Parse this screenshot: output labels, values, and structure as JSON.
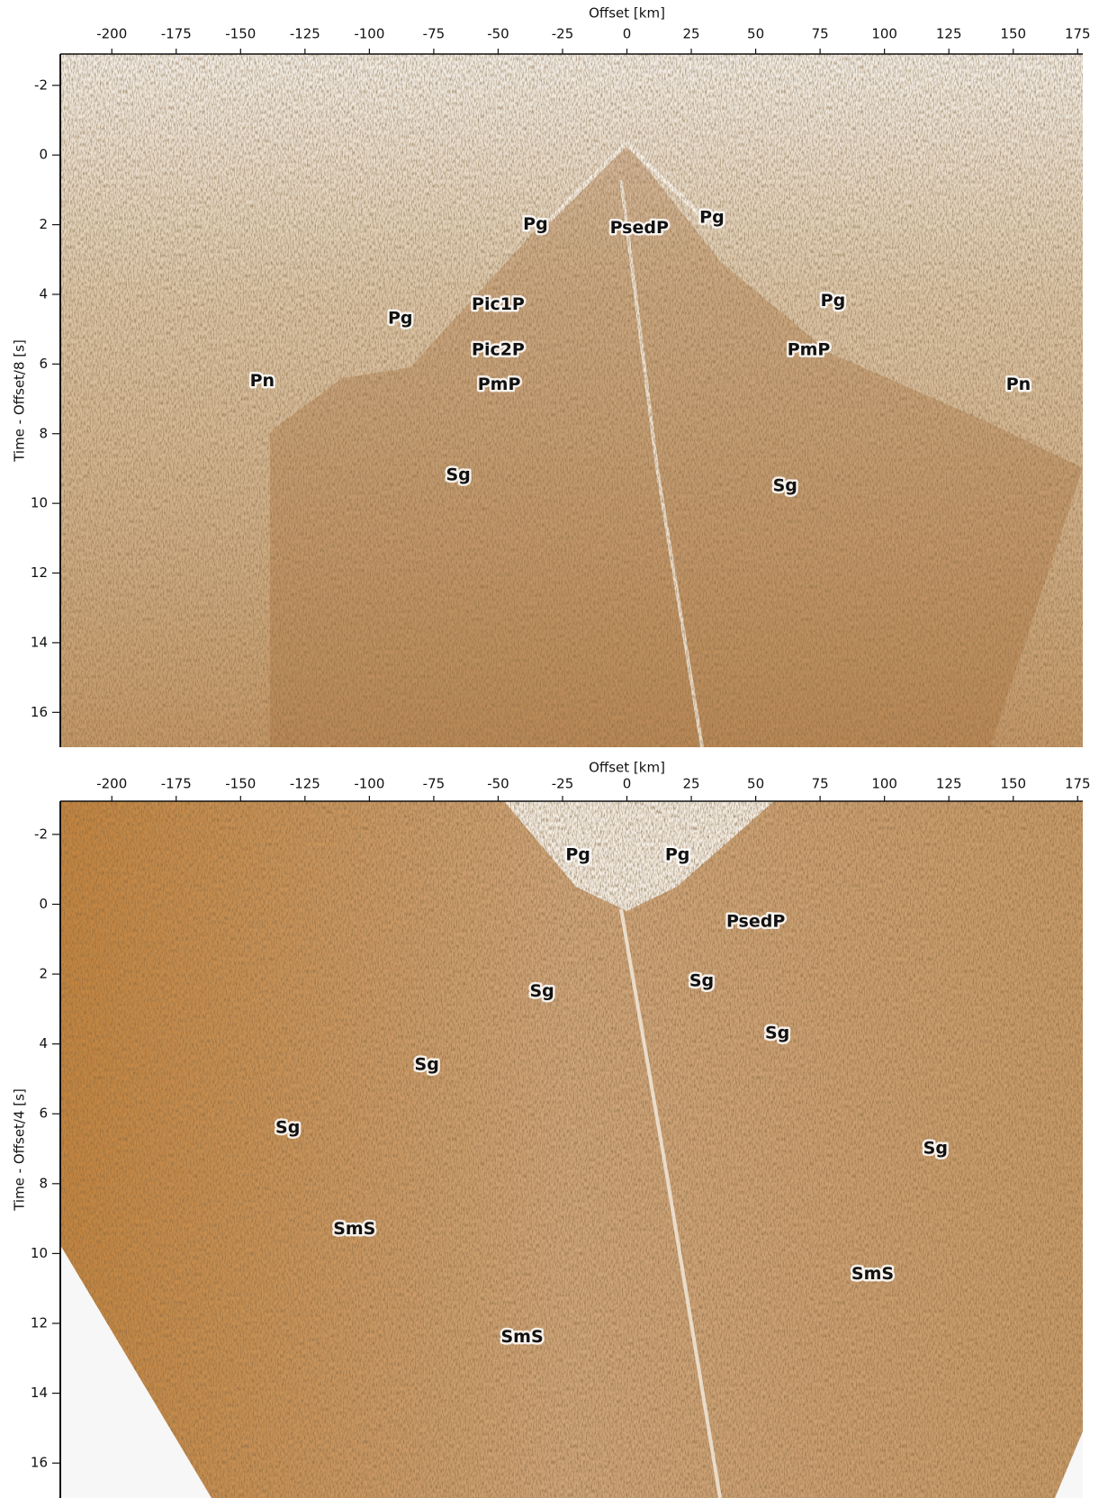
{
  "chart_data": [
    {
      "type": "section",
      "xlabel": "Offset [km]",
      "ylabel": "Time - Offset/8 [s]",
      "xlim": [
        -220,
        177
      ],
      "ylim": [
        -2.9,
        17
      ],
      "y_inverted": true,
      "xticks": [
        -200,
        -175,
        -150,
        -125,
        -100,
        -75,
        -50,
        -25,
        0,
        25,
        50,
        75,
        100,
        125,
        150,
        175
      ],
      "yticks": [
        -2,
        0,
        2,
        4,
        6,
        8,
        10,
        12,
        14,
        16
      ],
      "label_color": "#2f6fe4",
      "annotations": [
        {
          "text": "Pg",
          "x": -35.5,
          "y": 2.0
        },
        {
          "text": "PsedP",
          "x": 4.8,
          "y": 2.1
        },
        {
          "text": "Pg",
          "x": 33,
          "y": 1.8
        },
        {
          "text": "Pg",
          "x": -88,
          "y": 4.7
        },
        {
          "text": "Pic1P",
          "x": -50,
          "y": 4.3
        },
        {
          "text": "Pg",
          "x": 80,
          "y": 4.2
        },
        {
          "text": "Pic2P",
          "x": -50,
          "y": 5.6
        },
        {
          "text": "PmP",
          "x": 70.6,
          "y": 5.6
        },
        {
          "text": "Pn",
          "x": -141.6,
          "y": 6.5
        },
        {
          "text": "PmP",
          "x": -49.6,
          "y": 6.6
        },
        {
          "text": "Pn",
          "x": 152,
          "y": 6.6
        },
        {
          "text": "Sg",
          "x": -65.5,
          "y": 9.2
        },
        {
          "text": "Sg",
          "x": 61.4,
          "y": 9.5
        }
      ]
    },
    {
      "type": "section",
      "xlabel": "Offset [km]",
      "ylabel": "Time - Offset/4 [s]",
      "xlim": [
        -220,
        177
      ],
      "ylim": [
        -2.95,
        17
      ],
      "y_inverted": true,
      "xticks": [
        -200,
        -175,
        -150,
        -125,
        -100,
        -75,
        -50,
        -25,
        0,
        25,
        50,
        75,
        100,
        125,
        150,
        175
      ],
      "yticks": [
        -2,
        0,
        2,
        4,
        6,
        8,
        10,
        12,
        14,
        16
      ],
      "label_color": "#2f6fe4",
      "annotations": [
        {
          "text": "Pg",
          "x": -19,
          "y": -1.4
        },
        {
          "text": "Pg",
          "x": 19.6,
          "y": -1.4
        },
        {
          "text": "PsedP",
          "x": 50,
          "y": 0.5
        },
        {
          "text": "Sg",
          "x": 29,
          "y": 2.2
        },
        {
          "text": "Sg",
          "x": -33,
          "y": 2.5
        },
        {
          "text": "Sg",
          "x": 58.4,
          "y": 3.7
        },
        {
          "text": "Sg",
          "x": -77.7,
          "y": 4.6
        },
        {
          "text": "Sg",
          "x": -131.7,
          "y": 6.4
        },
        {
          "text": "Sg",
          "x": 119.8,
          "y": 7.0
        },
        {
          "text": "SmS",
          "x": -105.8,
          "y": 9.3
        },
        {
          "text": "SmS",
          "x": 95.4,
          "y": 10.6
        },
        {
          "text": "SmS",
          "x": -40.7,
          "y": 12.4
        }
      ]
    }
  ]
}
